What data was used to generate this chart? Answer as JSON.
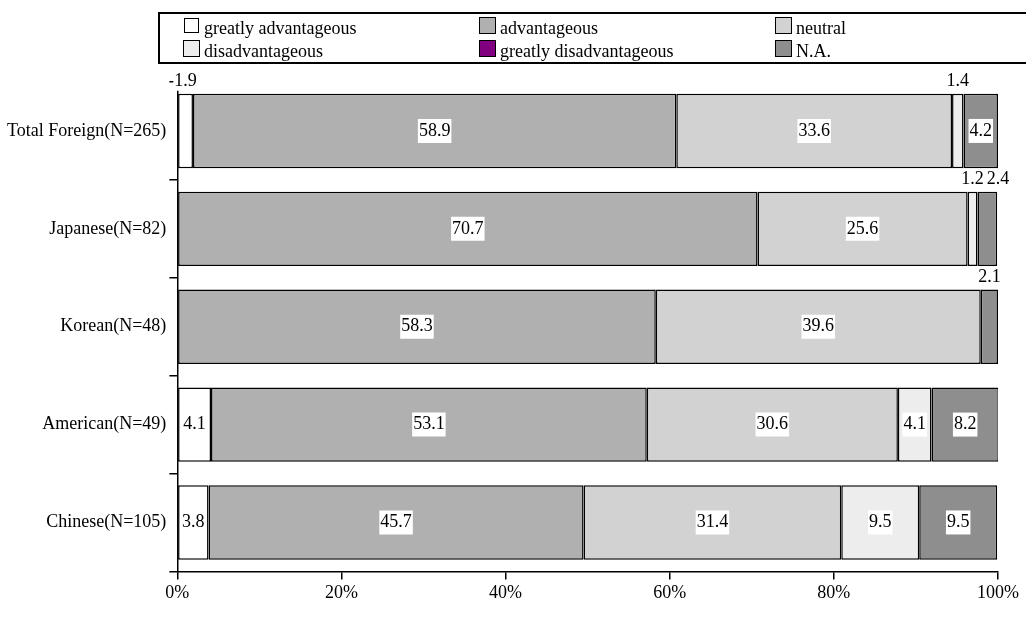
{
  "chart_data": {
    "type": "bar",
    "orientation": "horizontal",
    "stacked": true,
    "categories": [
      "Total Foreign(N=265)",
      "Japanese(N=82)",
      "Korean(N=48)",
      "American(N=49)",
      "Chinese(N=105)"
    ],
    "series": [
      {
        "name": "greatly advantageous",
        "color": "#ffffff",
        "values": [
          1.9,
          null,
          null,
          4.1,
          3.8
        ],
        "value_labels": [
          "1.9",
          null,
          null,
          "4.1",
          "3.8"
        ]
      },
      {
        "name": "advantageous",
        "color": "#b0b0b0",
        "values": [
          58.9,
          70.7,
          58.3,
          53.1,
          45.7
        ],
        "value_labels": [
          "58.9",
          "70.7",
          "58.3",
          "53.1",
          "45.7"
        ]
      },
      {
        "name": "neutral",
        "color": "#d2d2d2",
        "values": [
          33.6,
          25.6,
          39.6,
          30.6,
          31.4
        ],
        "value_labels": [
          "33.6",
          "25.6",
          "39.6",
          "30.6",
          "31.4"
        ]
      },
      {
        "name": "disadvantageous",
        "color": "#ededed",
        "values": [
          1.4,
          1.2,
          null,
          4.1,
          9.5
        ],
        "value_labels": [
          "1.4",
          "1.2",
          null,
          "4.1",
          "9.5"
        ]
      },
      {
        "name": "greatly disadvantageous",
        "color": "#800080",
        "values": [
          null,
          null,
          null,
          null,
          null
        ]
      },
      {
        "name": "N.A.",
        "color": "#8e8e8e",
        "values": [
          4.2,
          2.4,
          2.1,
          8.2,
          9.5
        ],
        "value_labels": [
          "4.2",
          "2.4",
          "2.1",
          "8.2",
          "9.5"
        ]
      }
    ],
    "xlim": [
      0,
      100
    ],
    "xticks": [
      {
        "value": 0,
        "label": "0%"
      },
      {
        "value": 20,
        "label": "20%"
      },
      {
        "value": 40,
        "label": "40%"
      },
      {
        "value": 60,
        "label": "60%"
      },
      {
        "value": 80,
        "label": "80%"
      },
      {
        "value": 100,
        "label": "100%"
      }
    ],
    "grid": false,
    "legend": "top"
  }
}
